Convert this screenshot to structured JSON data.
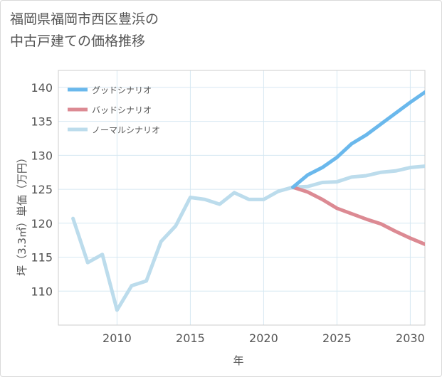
{
  "chart_data": {
    "type": "line",
    "title": "福岡県福岡市西区豊浜の中古戸建ての価格推移",
    "title_lines": [
      "福岡県福岡市西区豊浜の",
      "中古戸建ての価格推移"
    ],
    "xlabel": "年",
    "ylabel": "坪（3.3㎡）単価（万円）",
    "xlim": [
      2006,
      2031
    ],
    "ylim": [
      105,
      142.5
    ],
    "x_ticks": [
      2010,
      2015,
      2020,
      2025,
      2030
    ],
    "y_ticks": [
      110,
      115,
      120,
      125,
      130,
      135,
      140
    ],
    "grid": true,
    "legend_position": "top-left",
    "series": [
      {
        "name": "グッドシナリオ",
        "color": "#6ab8ec",
        "x": [
          2022,
          2023,
          2024,
          2025,
          2026,
          2027,
          2028,
          2029,
          2030,
          2031
        ],
        "y": [
          125.3,
          127.1,
          128.2,
          129.7,
          131.7,
          133.0,
          134.6,
          136.2,
          137.8,
          139.3
        ]
      },
      {
        "name": "バッドシナリオ",
        "color": "#dc8a93",
        "x": [
          2022,
          2023,
          2024,
          2025,
          2026,
          2027,
          2028,
          2029,
          2030,
          2031
        ],
        "y": [
          125.3,
          124.6,
          123.5,
          122.2,
          121.4,
          120.6,
          119.9,
          118.8,
          117.8,
          116.9
        ]
      },
      {
        "name": "ノーマルシナリオ",
        "color": "#bcdcec",
        "x": [
          2007,
          2008,
          2009,
          2010,
          2011,
          2012,
          2013,
          2014,
          2015,
          2016,
          2017,
          2018,
          2019,
          2020,
          2021,
          2022,
          2023,
          2024,
          2025,
          2026,
          2027,
          2028,
          2029,
          2030,
          2031
        ],
        "y": [
          120.7,
          114.2,
          115.4,
          107.2,
          110.8,
          111.5,
          117.3,
          119.6,
          123.8,
          123.5,
          122.8,
          124.5,
          123.5,
          123.5,
          124.7,
          125.3,
          125.4,
          126.0,
          126.1,
          126.8,
          127.0,
          127.5,
          127.7,
          128.2,
          128.4
        ]
      }
    ]
  }
}
